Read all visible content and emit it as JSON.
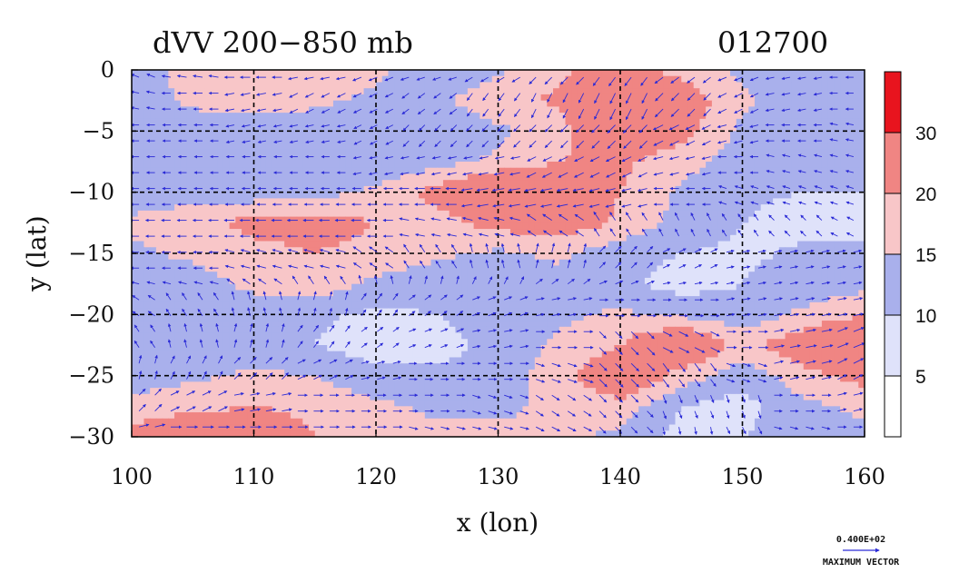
{
  "chart_data": {
    "type": "heatmap",
    "title": "dVV 200−850 mb",
    "subtitle": "012700",
    "xlabel": "x (lon)",
    "ylabel": "y (lat)",
    "xlim": [
      100,
      160
    ],
    "ylim": [
      -30,
      0
    ],
    "x_ticks": [
      "100",
      "110",
      "120",
      "130",
      "140",
      "150",
      "160"
    ],
    "y_ticks": [
      "0",
      "−5",
      "−10",
      "−15",
      "−20",
      "−25",
      "−30"
    ],
    "grid": true,
    "colorbar": {
      "labels": [
        "30",
        "20",
        "15",
        "10",
        "5"
      ],
      "label_values": [
        30,
        20,
        15,
        10,
        5
      ],
      "bins": [
        0,
        5,
        10,
        15,
        20,
        30,
        40
      ],
      "colors": [
        "#ffffff",
        "#dfe2fa",
        "#a9b0ec",
        "#f8c6c8",
        "#f08583",
        "#e8141e"
      ]
    },
    "grid_lat": [
      0,
      -2.5,
      -5,
      -7.5,
      -10,
      -12.5,
      -15,
      -17.5,
      -20,
      -22.5,
      -25,
      -27.5,
      -30
    ],
    "grid_lon": [
      100,
      105,
      110,
      115,
      120,
      125,
      130,
      135,
      140,
      145,
      150,
      155,
      160
    ],
    "speed_grid": [
      [
        11,
        18,
        20,
        18,
        16,
        12,
        14,
        19,
        22,
        18,
        14,
        12,
        10
      ],
      [
        12,
        16,
        18,
        16,
        14,
        14,
        18,
        21,
        30,
        24,
        16,
        12,
        10
      ],
      [
        10,
        12,
        12,
        12,
        11,
        12,
        14,
        18,
        26,
        22,
        14,
        12,
        10
      ],
      [
        12,
        12,
        10,
        11,
        11,
        13,
        16,
        20,
        21,
        17,
        12,
        10,
        11
      ],
      [
        12,
        13,
        12,
        13,
        16,
        22,
        30,
        26,
        20,
        14,
        11,
        10,
        10
      ],
      [
        16,
        18,
        22,
        23,
        20,
        18,
        22,
        24,
        19,
        13,
        10,
        8,
        8
      ],
      [
        14,
        16,
        18,
        20,
        18,
        16,
        14,
        16,
        12,
        10,
        9,
        11,
        12
      ],
      [
        11,
        13,
        16,
        18,
        14,
        12,
        11,
        13,
        11,
        8,
        10,
        12,
        13
      ],
      [
        10,
        12,
        13,
        11,
        9,
        10,
        12,
        14,
        16,
        14,
        12,
        16,
        20
      ],
      [
        11,
        12,
        12,
        10,
        7,
        8,
        12,
        16,
        20,
        28,
        18,
        24,
        30
      ],
      [
        13,
        14,
        16,
        15,
        12,
        11,
        12,
        18,
        26,
        18,
        12,
        18,
        22
      ],
      [
        16,
        18,
        20,
        18,
        16,
        14,
        14,
        16,
        18,
        10,
        8,
        14,
        16
      ],
      [
        22,
        28,
        26,
        20,
        18,
        16,
        16,
        16,
        14,
        8,
        10,
        12,
        14
      ]
    ],
    "vectors_u": [
      [
        -1.0,
        -1.2,
        -1.2,
        -1.0,
        -1.0,
        -1.2,
        -1.0,
        -0.8,
        -0.6,
        -0.8,
        -1.0,
        -1.0,
        -1.0
      ],
      [
        -1.0,
        -1.0,
        -1.0,
        -0.8,
        -0.8,
        -0.8,
        -0.6,
        -0.4,
        -0.4,
        -0.6,
        -0.8,
        -1.0,
        -1.0
      ],
      [
        -1.0,
        -1.0,
        -1.0,
        -1.0,
        -0.8,
        -0.6,
        -0.6,
        -0.6,
        -0.6,
        -0.8,
        -0.8,
        -1.0,
        -1.0
      ],
      [
        -1.0,
        -1.0,
        -1.0,
        -1.0,
        -1.0,
        -1.0,
        -1.0,
        -0.8,
        -0.8,
        -0.8,
        -0.8,
        -0.8,
        -0.8
      ],
      [
        -1.0,
        -1.0,
        -1.0,
        -1.0,
        -1.2,
        -1.2,
        -1.2,
        -1.0,
        -0.8,
        -0.8,
        -0.6,
        -0.6,
        -0.6
      ],
      [
        -1.0,
        -1.0,
        -1.0,
        -1.0,
        -1.0,
        -1.0,
        -0.8,
        -0.6,
        -0.4,
        -0.4,
        -0.4,
        -0.4,
        -0.4
      ],
      [
        -1.0,
        -1.0,
        -0.8,
        -0.8,
        -0.6,
        -0.4,
        -0.2,
        0.2,
        0.6,
        0.8,
        1.0,
        1.0,
        1.0
      ],
      [
        -0.8,
        -0.8,
        -0.6,
        -0.4,
        -0.2,
        0.2,
        0.4,
        0.8,
        1.0,
        1.0,
        1.0,
        1.0,
        1.0
      ],
      [
        -0.6,
        -0.4,
        -0.2,
        0.2,
        0.6,
        0.8,
        1.0,
        1.0,
        1.0,
        1.0,
        1.0,
        1.0,
        1.0
      ],
      [
        -0.4,
        -0.2,
        0.2,
        0.6,
        0.8,
        1.0,
        1.0,
        0.8,
        0.6,
        0.8,
        1.0,
        1.0,
        1.0
      ],
      [
        0.2,
        0.4,
        0.6,
        0.8,
        0.8,
        0.6,
        0.4,
        0.6,
        0.8,
        0.6,
        0.6,
        0.8,
        0.8
      ],
      [
        0.6,
        0.8,
        1.0,
        1.0,
        0.8,
        0.6,
        0.6,
        0.6,
        0.8,
        0.4,
        0.2,
        0.6,
        0.8
      ],
      [
        0.8,
        1.0,
        1.0,
        1.0,
        1.0,
        0.8,
        0.8,
        0.8,
        0.6,
        0.2,
        0.4,
        0.8,
        0.8
      ]
    ],
    "vectors_v": [
      [
        0.4,
        0.2,
        0.0,
        -0.2,
        -0.4,
        -0.4,
        -0.6,
        -0.8,
        -0.8,
        -0.6,
        -0.4,
        -0.2,
        0.0
      ],
      [
        0.2,
        0.0,
        -0.2,
        -0.4,
        -0.4,
        -0.6,
        -0.8,
        -0.8,
        -0.8,
        -0.6,
        -0.4,
        -0.2,
        0.0
      ],
      [
        0.0,
        0.0,
        -0.2,
        -0.2,
        -0.4,
        -0.6,
        -0.6,
        -0.6,
        -0.6,
        -0.4,
        -0.2,
        0.0,
        0.2
      ],
      [
        0.0,
        0.0,
        0.0,
        0.0,
        -0.2,
        -0.2,
        -0.2,
        -0.4,
        -0.4,
        -0.2,
        0.0,
        0.2,
        0.2
      ],
      [
        0.0,
        0.0,
        0.0,
        0.0,
        0.0,
        0.0,
        -0.2,
        -0.2,
        -0.2,
        0.0,
        0.2,
        0.2,
        0.2
      ],
      [
        0.0,
        0.0,
        0.0,
        0.0,
        0.0,
        0.2,
        0.2,
        0.4,
        0.6,
        0.8,
        0.6,
        0.4,
        0.2
      ],
      [
        0.0,
        0.0,
        0.2,
        0.2,
        0.4,
        0.6,
        0.8,
        0.8,
        0.6,
        0.4,
        0.2,
        0.2,
        0.2
      ],
      [
        0.2,
        0.2,
        0.4,
        0.6,
        0.8,
        0.8,
        0.8,
        0.6,
        0.4,
        0.2,
        0.2,
        0.2,
        0.2
      ],
      [
        0.4,
        0.6,
        0.8,
        0.8,
        0.8,
        0.6,
        0.4,
        0.2,
        0.0,
        0.0,
        0.2,
        0.2,
        0.2
      ],
      [
        0.6,
        0.8,
        0.8,
        0.8,
        0.6,
        0.4,
        0.2,
        0.0,
        -0.6,
        -0.4,
        0.0,
        0.2,
        0.4
      ],
      [
        0.8,
        0.8,
        0.6,
        0.4,
        0.2,
        0.0,
        0.0,
        -0.2,
        -0.8,
        -0.8,
        -0.2,
        0.2,
        0.4
      ],
      [
        0.6,
        0.4,
        0.2,
        0.0,
        0.0,
        0.0,
        -0.2,
        -0.4,
        -0.8,
        -1.0,
        -0.6,
        0.0,
        0.2
      ],
      [
        0.2,
        0.0,
        0.0,
        0.0,
        0.0,
        -0.2,
        -0.2,
        -0.4,
        -0.6,
        -1.0,
        -0.8,
        -0.2,
        0.0
      ]
    ],
    "vector_legend": {
      "value": "0.400E+02",
      "label": "MAXIMUM VECTOR"
    },
    "colors": {
      "vector": "#2a2ad6",
      "frame": "#000000"
    }
  }
}
